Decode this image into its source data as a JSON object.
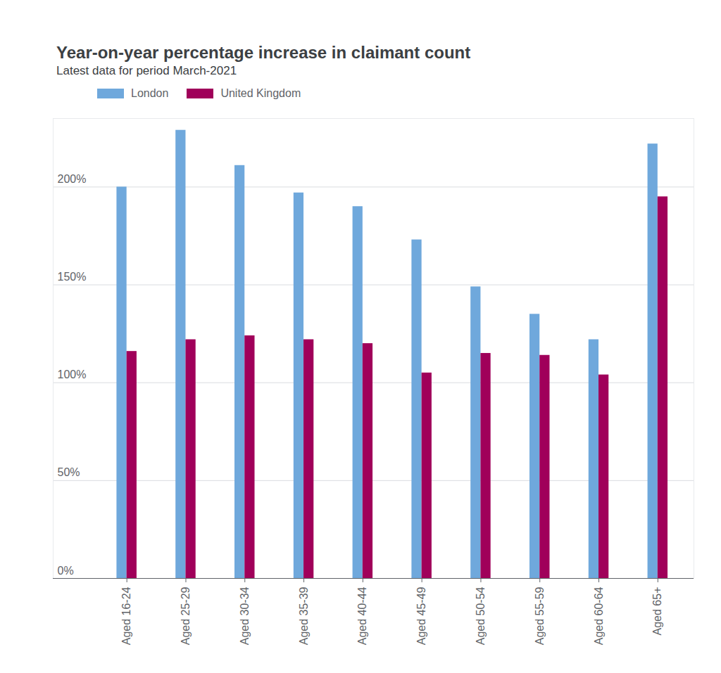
{
  "chart_data": {
    "type": "bar",
    "title": "Year-on-year percentage increase in claimant count",
    "subtitle": "Latest data for period March-2021",
    "categories": [
      "Aged 16-24",
      "Aged 25-29",
      "Aged 30-34",
      "Aged 35-39",
      "Aged 40-44",
      "Aged 45-49",
      "Aged 50-54",
      "Aged 55-59",
      "Aged 60-64",
      "Aged 65+"
    ],
    "series": [
      {
        "name": "London",
        "color": "#6fa8dc",
        "values": [
          200,
          229,
          211,
          197,
          190,
          173,
          149,
          135,
          122,
          222
        ]
      },
      {
        "name": "United Kingdom",
        "color": "#a0005a",
        "values": [
          116,
          122,
          124,
          122,
          120,
          105,
          115,
          114,
          104,
          195
        ]
      }
    ],
    "ylim": [
      0,
      235
    ],
    "yticks": [
      {
        "value": 0,
        "label": "0%"
      },
      {
        "value": 50,
        "label": "50%"
      },
      {
        "value": 100,
        "label": "100%"
      },
      {
        "value": 150,
        "label": "150%"
      },
      {
        "value": 200,
        "label": "200%"
      }
    ],
    "grid": true,
    "legend": "top-left"
  }
}
